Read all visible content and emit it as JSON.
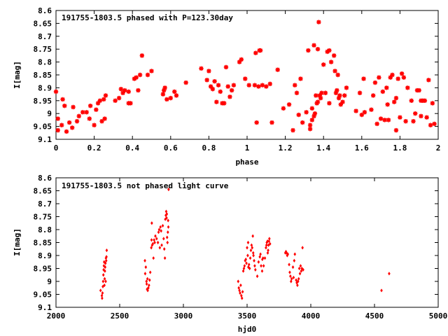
{
  "chart_data": [
    {
      "type": "scatter",
      "title": "191755-1803.5 phased with P=123.30day",
      "xlabel": "phase",
      "ylabel": "I[mag]",
      "xlim": [
        0,
        2
      ],
      "ylim": [
        9.1,
        8.6
      ],
      "y_inverted": true,
      "grid": false,
      "legend": "none",
      "color": "#ff0000",
      "marker": "star",
      "x_ticks": [
        "0",
        "0.2",
        "0.4",
        "0.6",
        "0.8",
        "1",
        "1.2",
        "1.4",
        "1.6",
        "1.8",
        "2"
      ],
      "y_ticks": [
        "8.6",
        "8.65",
        "8.7",
        "8.75",
        "8.8",
        "8.85",
        "8.9",
        "8.95",
        "9",
        "9.05",
        "9.1"
      ],
      "points": [
        [
          0.0,
          8.915
        ],
        [
          0.01,
          9.02
        ],
        [
          0.01,
          9.065
        ],
        [
          0.03,
          9.045
        ],
        [
          0.035,
          8.945
        ],
        [
          0.045,
          8.97
        ],
        [
          0.055,
          9.07
        ],
        [
          0.07,
          9.035
        ],
        [
          0.085,
          9.055
        ],
        [
          0.09,
          8.975
        ],
        [
          0.11,
          9.03
        ],
        [
          0.12,
          9.01
        ],
        [
          0.14,
          8.995
        ],
        [
          0.16,
          8.995
        ],
        [
          0.175,
          9.02
        ],
        [
          0.18,
          8.97
        ],
        [
          0.2,
          9.045
        ],
        [
          0.21,
          8.985
        ],
        [
          0.22,
          8.96
        ],
        [
          0.23,
          8.95
        ],
        [
          0.24,
          9.03
        ],
        [
          0.25,
          8.945
        ],
        [
          0.255,
          9.02
        ],
        [
          0.26,
          8.93
        ],
        [
          0.31,
          8.95
        ],
        [
          0.33,
          8.94
        ],
        [
          0.34,
          8.905
        ],
        [
          0.35,
          8.92
        ],
        [
          0.36,
          8.91
        ],
        [
          0.38,
          8.915
        ],
        [
          0.38,
          8.96
        ],
        [
          0.39,
          8.96
        ],
        [
          0.41,
          8.865
        ],
        [
          0.42,
          8.86
        ],
        [
          0.43,
          8.91
        ],
        [
          0.44,
          8.85
        ],
        [
          0.45,
          8.775
        ],
        [
          0.48,
          8.85
        ],
        [
          0.5,
          8.835
        ],
        [
          0.56,
          8.925
        ],
        [
          0.565,
          8.91
        ],
        [
          0.57,
          8.9
        ],
        [
          0.58,
          8.945
        ],
        [
          0.6,
          8.94
        ],
        [
          0.62,
          8.915
        ],
        [
          0.63,
          8.93
        ],
        [
          0.68,
          8.88
        ],
        [
          0.76,
          8.825
        ],
        [
          0.79,
          8.87
        ],
        [
          0.8,
          8.835
        ],
        [
          0.81,
          8.895
        ],
        [
          0.82,
          8.905
        ],
        [
          0.83,
          8.875
        ],
        [
          0.84,
          8.955
        ],
        [
          0.85,
          8.89
        ],
        [
          0.86,
          8.915
        ],
        [
          0.87,
          8.96
        ],
        [
          0.88,
          8.96
        ],
        [
          0.89,
          8.82
        ],
        [
          0.9,
          8.895
        ],
        [
          0.91,
          8.935
        ],
        [
          0.92,
          8.91
        ],
        [
          0.93,
          8.89
        ],
        [
          0.96,
          8.8
        ],
        [
          0.97,
          8.79
        ],
        [
          0.99,
          8.865
        ],
        [
          1.01,
          8.89
        ],
        [
          1.04,
          8.89
        ],
        [
          1.045,
          8.765
        ],
        [
          1.05,
          9.035
        ],
        [
          1.06,
          8.895
        ],
        [
          1.065,
          8.755
        ],
        [
          1.07,
          8.755
        ],
        [
          1.08,
          8.89
        ],
        [
          1.1,
          8.895
        ],
        [
          1.12,
          8.885
        ],
        [
          1.13,
          9.035
        ],
        [
          1.16,
          8.83
        ],
        [
          1.19,
          8.98
        ],
        [
          1.22,
          8.965
        ],
        [
          1.24,
          9.065
        ],
        [
          1.25,
          8.89
        ],
        [
          1.26,
          8.92
        ],
        [
          1.27,
          9.005
        ],
        [
          1.28,
          8.865
        ],
        [
          1.29,
          9.035
        ],
        [
          1.31,
          8.995
        ],
        [
          1.32,
          8.755
        ],
        [
          1.33,
          9.06
        ],
        [
          1.33,
          9.045
        ],
        [
          1.34,
          8.98
        ],
        [
          1.34,
          9.025
        ],
        [
          1.35,
          8.735
        ],
        [
          1.35,
          9.01
        ],
        [
          1.355,
          9.0
        ],
        [
          1.36,
          8.93
        ],
        [
          1.365,
          8.96
        ],
        [
          1.37,
          8.75
        ],
        [
          1.37,
          8.955
        ],
        [
          1.375,
          8.645
        ],
        [
          1.38,
          8.93
        ],
        [
          1.385,
          8.94
        ],
        [
          1.39,
          8.92
        ],
        [
          1.4,
          8.81
        ],
        [
          1.41,
          8.92
        ],
        [
          1.42,
          8.76
        ],
        [
          1.43,
          8.96
        ],
        [
          1.43,
          8.755
        ],
        [
          1.44,
          8.8
        ],
        [
          1.455,
          8.775
        ],
        [
          1.46,
          8.835
        ],
        [
          1.465,
          8.92
        ],
        [
          1.47,
          8.91
        ],
        [
          1.475,
          8.85
        ],
        [
          1.48,
          8.94
        ],
        [
          1.485,
          8.93
        ],
        [
          1.49,
          8.965
        ],
        [
          1.5,
          8.955
        ],
        [
          1.51,
          8.93
        ],
        [
          1.52,
          8.9
        ],
        [
          1.57,
          8.99
        ],
        [
          1.59,
          8.92
        ],
        [
          1.6,
          9.005
        ],
        [
          1.61,
          8.865
        ],
        [
          1.615,
          8.995
        ],
        [
          1.65,
          8.985
        ],
        [
          1.66,
          8.93
        ],
        [
          1.67,
          8.88
        ],
        [
          1.68,
          9.04
        ],
        [
          1.69,
          8.86
        ],
        [
          1.7,
          9.02
        ],
        [
          1.71,
          8.915
        ],
        [
          1.72,
          9.025
        ],
        [
          1.73,
          8.9
        ],
        [
          1.735,
          8.965
        ],
        [
          1.74,
          9.025
        ],
        [
          1.75,
          8.86
        ],
        [
          1.76,
          8.85
        ],
        [
          1.77,
          8.955
        ],
        [
          1.78,
          8.94
        ],
        [
          1.78,
          9.065
        ],
        [
          1.79,
          8.865
        ],
        [
          1.8,
          9.015
        ],
        [
          1.81,
          8.845
        ],
        [
          1.82,
          8.86
        ],
        [
          1.83,
          9.03
        ],
        [
          1.84,
          8.9
        ],
        [
          1.86,
          8.95
        ],
        [
          1.87,
          9.03
        ],
        [
          1.88,
          9.0
        ],
        [
          1.89,
          8.91
        ],
        [
          1.9,
          8.91
        ],
        [
          1.91,
          9.01
        ],
        [
          1.91,
          8.95
        ],
        [
          1.92,
          8.95
        ],
        [
          1.93,
          8.95
        ],
        [
          1.94,
          9.015
        ],
        [
          1.95,
          8.87
        ],
        [
          1.96,
          9.045
        ],
        [
          1.97,
          8.96
        ],
        [
          1.98,
          9.04
        ]
      ]
    },
    {
      "type": "scatter",
      "title": "191755-1803.5 not phased light curve",
      "xlabel": "hjd0",
      "ylabel": "I[mag]",
      "xlim": [
        2000,
        5000
      ],
      "ylim": [
        9.1,
        8.6
      ],
      "y_inverted": true,
      "grid": false,
      "legend": "none",
      "color": "#ff0000",
      "marker": "diamond",
      "x_ticks": [
        "2000",
        "2500",
        "3000",
        "3500",
        "4000",
        "4500",
        "5000"
      ],
      "y_ticks": [
        "8.6",
        "8.65",
        "8.7",
        "8.75",
        "8.8",
        "8.85",
        "8.9",
        "8.95",
        "9",
        "9.05",
        "9.1"
      ],
      "points": [
        [
          2350,
          9.035
        ],
        [
          2360,
          9.055
        ],
        [
          2362,
          9.065
        ],
        [
          2365,
          9.045
        ],
        [
          2368,
          9.02
        ],
        [
          2370,
          9.0
        ],
        [
          2372,
          8.975
        ],
        [
          2374,
          8.955
        ],
        [
          2376,
          8.94
        ],
        [
          2378,
          8.925
        ],
        [
          2380,
          9.015
        ],
        [
          2382,
          8.99
        ],
        [
          2384,
          8.96
        ],
        [
          2386,
          8.945
        ],
        [
          2388,
          8.93
        ],
        [
          2390,
          9.0
        ],
        [
          2392,
          8.91
        ],
        [
          2394,
          8.92
        ],
        [
          2396,
          8.905
        ],
        [
          2398,
          8.88
        ],
        [
          2698,
          8.92
        ],
        [
          2700,
          8.97
        ],
        [
          2705,
          8.945
        ],
        [
          2710,
          9.0
        ],
        [
          2712,
          9.01
        ],
        [
          2715,
          9.03
        ],
        [
          2718,
          8.99
        ],
        [
          2720,
          9.035
        ],
        [
          2725,
          9.025
        ],
        [
          2730,
          9.015
        ],
        [
          2735,
          8.995
        ],
        [
          2740,
          8.965
        ],
        [
          2748,
          8.87
        ],
        [
          2750,
          8.84
        ],
        [
          2752,
          8.775
        ],
        [
          2755,
          8.86
        ],
        [
          2760,
          8.855
        ],
        [
          2765,
          8.91
        ],
        [
          2770,
          8.84
        ],
        [
          2775,
          8.85
        ],
        [
          2780,
          8.825
        ],
        [
          2790,
          8.835
        ],
        [
          2800,
          8.85
        ],
        [
          2805,
          8.81
        ],
        [
          2810,
          8.8
        ],
        [
          2815,
          8.87
        ],
        [
          2820,
          8.79
        ],
        [
          2825,
          8.805
        ],
        [
          2830,
          8.86
        ],
        [
          2838,
          8.785
        ],
        [
          2845,
          8.835
        ],
        [
          2850,
          8.875
        ],
        [
          2855,
          8.91
        ],
        [
          2858,
          8.76
        ],
        [
          2862,
          8.745
        ],
        [
          2865,
          8.73
        ],
        [
          2868,
          8.755
        ],
        [
          2870,
          8.74
        ],
        [
          2872,
          8.83
        ],
        [
          2875,
          8.85
        ],
        [
          2878,
          8.81
        ],
        [
          2880,
          8.765
        ],
        [
          2882,
          8.79
        ],
        [
          2884,
          8.645
        ],
        [
          3430,
          9.0
        ],
        [
          3435,
          9.025
        ],
        [
          3440,
          9.035
        ],
        [
          3445,
          9.045
        ],
        [
          3450,
          9.015
        ],
        [
          3455,
          9.055
        ],
        [
          3460,
          9.065
        ],
        [
          3465,
          9.04
        ],
        [
          3470,
          8.96
        ],
        [
          3475,
          8.95
        ],
        [
          3480,
          8.94
        ],
        [
          3485,
          8.92
        ],
        [
          3490,
          8.915
        ],
        [
          3495,
          8.93
        ],
        [
          3500,
          8.87
        ],
        [
          3505,
          8.9
        ],
        [
          3508,
          8.85
        ],
        [
          3510,
          8.945
        ],
        [
          3515,
          8.935
        ],
        [
          3520,
          8.95
        ],
        [
          3525,
          8.91
        ],
        [
          3530,
          8.88
        ],
        [
          3535,
          8.86
        ],
        [
          3540,
          8.87
        ],
        [
          3545,
          8.825
        ],
        [
          3548,
          8.89
        ],
        [
          3550,
          8.9
        ],
        [
          3555,
          8.92
        ],
        [
          3560,
          8.94
        ],
        [
          3565,
          8.955
        ],
        [
          3580,
          8.98
        ],
        [
          3590,
          8.925
        ],
        [
          3600,
          8.905
        ],
        [
          3605,
          8.895
        ],
        [
          3610,
          8.94
        ],
        [
          3618,
          8.96
        ],
        [
          3620,
          8.915
        ],
        [
          3625,
          8.91
        ],
        [
          3630,
          8.94
        ],
        [
          3640,
          8.91
        ],
        [
          3648,
          8.87
        ],
        [
          3652,
          8.86
        ],
        [
          3655,
          8.85
        ],
        [
          3660,
          8.845
        ],
        [
          3662,
          8.89
        ],
        [
          3665,
          8.88
        ],
        [
          3668,
          8.86
        ],
        [
          3672,
          8.845
        ],
        [
          3675,
          8.835
        ],
        [
          3680,
          8.855
        ],
        [
          3800,
          8.89
        ],
        [
          3805,
          8.885
        ],
        [
          3810,
          8.89
        ],
        [
          3815,
          8.9
        ],
        [
          3820,
          8.895
        ],
        [
          3830,
          8.935
        ],
        [
          3835,
          8.965
        ],
        [
          3840,
          8.98
        ],
        [
          3845,
          9.0
        ],
        [
          3850,
          8.99
        ],
        [
          3860,
          8.945
        ],
        [
          3865,
          8.985
        ],
        [
          3870,
          8.92
        ],
        [
          3875,
          8.895
        ],
        [
          3885,
          8.995
        ],
        [
          3890,
          9.005
        ],
        [
          3895,
          9.015
        ],
        [
          3900,
          9.0
        ],
        [
          3905,
          8.99
        ],
        [
          3910,
          8.95
        ],
        [
          3915,
          8.97
        ],
        [
          3920,
          8.94
        ],
        [
          3925,
          8.96
        ],
        [
          3930,
          8.95
        ],
        [
          3935,
          8.87
        ],
        [
          3940,
          8.955
        ],
        [
          4555,
          9.035
        ],
        [
          4615,
          8.97
        ]
      ]
    }
  ]
}
